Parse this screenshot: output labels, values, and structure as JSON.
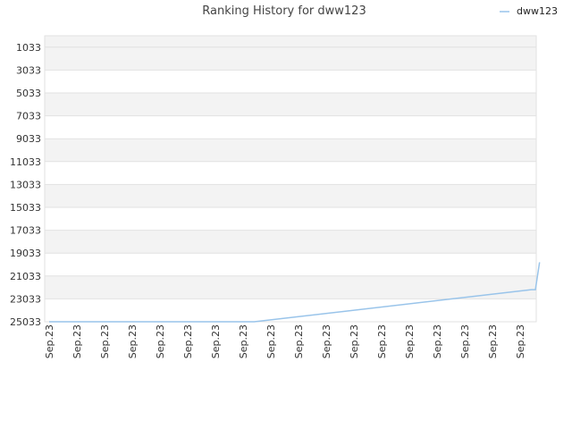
{
  "chart_data": {
    "type": "line",
    "title": "Ranking History for dww123",
    "xlabel": "",
    "ylabel": "",
    "y_inverted": true,
    "ylim": [
      1033,
      25033
    ],
    "y_ticks": [
      1033,
      3033,
      5033,
      7033,
      9033,
      11033,
      13033,
      15033,
      17033,
      19033,
      21033,
      23033,
      25033
    ],
    "x_tick_labels": [
      "Sep.23",
      "Sep.23",
      "Sep.23",
      "Sep.23",
      "Sep.23",
      "Sep.23",
      "Sep.23",
      "Sep.23",
      "Sep.23",
      "Sep.23",
      "Sep.23",
      "Sep.23",
      "Sep.23",
      "Sep.23",
      "Sep.23",
      "Sep.23",
      "Sep.23",
      "Sep.23"
    ],
    "grid": true,
    "legend": {
      "position": "top-right"
    },
    "series": [
      {
        "name": "dww123",
        "color": "#99c4ea",
        "x": [
          0,
          7.4,
          17.4,
          17.55,
          17.7
        ],
        "values": [
          25033,
          25033,
          22233,
          22233,
          19833
        ]
      }
    ]
  }
}
